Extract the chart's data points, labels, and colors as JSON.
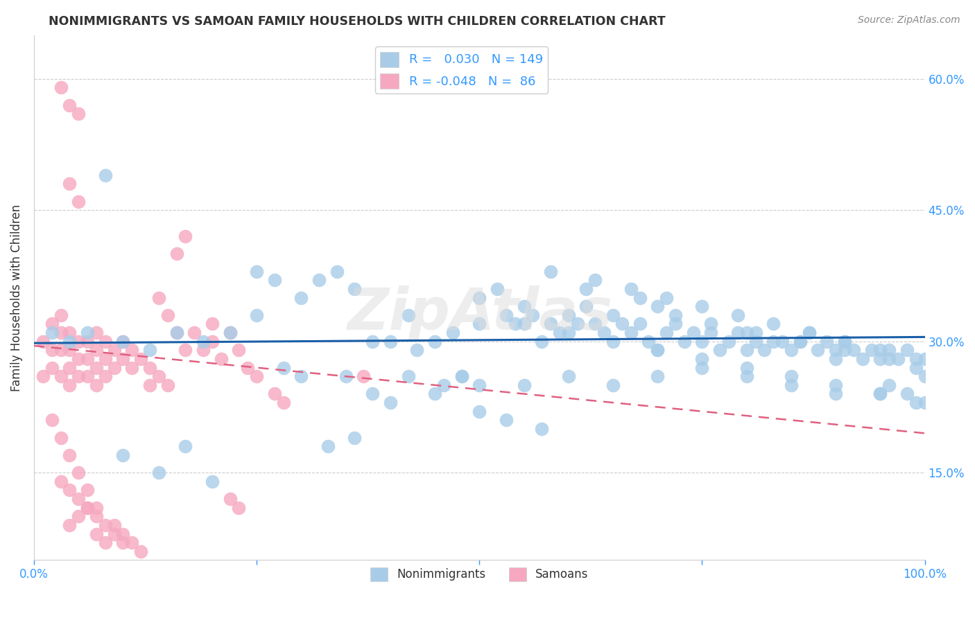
{
  "title": "NONIMMIGRANTS VS SAMOAN FAMILY HOUSEHOLDS WITH CHILDREN CORRELATION CHART",
  "source": "Source: ZipAtlas.com",
  "ylabel": "Family Households with Children",
  "xlim": [
    0.0,
    1.0
  ],
  "ylim": [
    0.05,
    0.65
  ],
  "yticks": [
    0.15,
    0.3,
    0.45,
    0.6
  ],
  "right_ytick_labels": [
    "15.0%",
    "30.0%",
    "45.0%",
    "60.0%"
  ],
  "xticks": [
    0.0,
    0.25,
    0.5,
    0.75,
    1.0
  ],
  "xtick_labels": [
    "0.0%",
    "",
    "",
    "",
    "100.0%"
  ],
  "color_blue": "#a8cce8",
  "color_pink": "#f5a8bf",
  "line_blue": "#1a5fa8",
  "line_pink": "#e06080",
  "watermark": "ZipAtlas",
  "background_color": "#ffffff",
  "grid_color": "#cccccc",
  "title_color": "#333333",
  "axis_color": "#3399ff",
  "ni_trend_start": 0.298,
  "ni_trend_end": 0.305,
  "sa_trend_start": 0.295,
  "sa_trend_end": 0.195,
  "nonimmigrants_x": [
    0.02,
    0.04,
    0.06,
    0.08,
    0.1,
    0.13,
    0.16,
    0.19,
    0.22,
    0.25,
    0.27,
    0.3,
    0.32,
    0.34,
    0.36,
    0.38,
    0.4,
    0.42,
    0.43,
    0.45,
    0.47,
    0.48,
    0.5,
    0.5,
    0.52,
    0.53,
    0.54,
    0.55,
    0.56,
    0.57,
    0.58,
    0.59,
    0.6,
    0.61,
    0.62,
    0.63,
    0.64,
    0.65,
    0.66,
    0.67,
    0.68,
    0.69,
    0.7,
    0.7,
    0.71,
    0.72,
    0.73,
    0.74,
    0.75,
    0.76,
    0.77,
    0.78,
    0.79,
    0.8,
    0.8,
    0.81,
    0.82,
    0.83,
    0.84,
    0.85,
    0.86,
    0.87,
    0.88,
    0.89,
    0.9,
    0.9,
    0.91,
    0.92,
    0.93,
    0.94,
    0.95,
    0.96,
    0.97,
    0.98,
    0.99,
    1.0,
    1.0,
    0.38,
    0.4,
    0.25,
    0.28,
    0.35,
    0.45,
    0.5,
    0.55,
    0.6,
    0.65,
    0.7,
    0.75,
    0.8,
    0.85,
    0.9,
    0.95,
    1.0,
    0.62,
    0.68,
    0.72,
    0.76,
    0.81,
    0.86,
    0.91,
    0.96,
    0.3,
    0.55,
    0.6,
    0.65,
    0.7,
    0.75,
    0.8,
    0.85,
    0.9,
    0.95,
    0.58,
    0.63,
    0.67,
    0.71,
    0.75,
    0.79,
    0.83,
    0.87,
    0.91,
    0.95,
    0.99,
    0.5,
    0.53,
    0.57,
    0.48,
    0.42,
    0.46,
    0.36,
    0.33,
    0.2,
    0.17,
    0.14,
    0.1,
    0.96,
    0.98,
    0.99
  ],
  "nonimmigrants_y": [
    0.31,
    0.3,
    0.31,
    0.49,
    0.3,
    0.29,
    0.31,
    0.3,
    0.31,
    0.38,
    0.37,
    0.35,
    0.37,
    0.38,
    0.36,
    0.3,
    0.3,
    0.33,
    0.29,
    0.3,
    0.31,
    0.26,
    0.35,
    0.32,
    0.36,
    0.33,
    0.32,
    0.34,
    0.33,
    0.3,
    0.32,
    0.31,
    0.33,
    0.32,
    0.34,
    0.32,
    0.31,
    0.33,
    0.32,
    0.31,
    0.32,
    0.3,
    0.34,
    0.29,
    0.31,
    0.32,
    0.3,
    0.31,
    0.3,
    0.31,
    0.29,
    0.3,
    0.31,
    0.31,
    0.29,
    0.3,
    0.29,
    0.3,
    0.3,
    0.29,
    0.3,
    0.31,
    0.29,
    0.3,
    0.29,
    0.28,
    0.3,
    0.29,
    0.28,
    0.29,
    0.28,
    0.29,
    0.28,
    0.29,
    0.27,
    0.28,
    0.26,
    0.24,
    0.23,
    0.33,
    0.27,
    0.26,
    0.24,
    0.25,
    0.25,
    0.26,
    0.25,
    0.26,
    0.27,
    0.26,
    0.25,
    0.24,
    0.24,
    0.23,
    0.36,
    0.35,
    0.33,
    0.32,
    0.31,
    0.3,
    0.29,
    0.28,
    0.26,
    0.32,
    0.31,
    0.3,
    0.29,
    0.28,
    0.27,
    0.26,
    0.25,
    0.24,
    0.38,
    0.37,
    0.36,
    0.35,
    0.34,
    0.33,
    0.32,
    0.31,
    0.3,
    0.29,
    0.28,
    0.22,
    0.21,
    0.2,
    0.26,
    0.26,
    0.25,
    0.19,
    0.18,
    0.14,
    0.18,
    0.15,
    0.17,
    0.25,
    0.24,
    0.23
  ],
  "samoans_x": [
    0.01,
    0.01,
    0.02,
    0.02,
    0.02,
    0.03,
    0.03,
    0.03,
    0.03,
    0.04,
    0.04,
    0.04,
    0.04,
    0.05,
    0.05,
    0.05,
    0.06,
    0.06,
    0.06,
    0.07,
    0.07,
    0.07,
    0.07,
    0.08,
    0.08,
    0.08,
    0.09,
    0.09,
    0.1,
    0.1,
    0.11,
    0.11,
    0.12,
    0.13,
    0.13,
    0.14,
    0.15,
    0.16,
    0.17,
    0.18,
    0.19,
    0.2,
    0.2,
    0.21,
    0.22,
    0.23,
    0.24,
    0.25,
    0.27,
    0.28,
    0.04,
    0.05,
    0.06,
    0.07,
    0.08,
    0.09,
    0.1,
    0.11,
    0.12,
    0.03,
    0.04,
    0.05,
    0.06,
    0.07,
    0.08,
    0.09,
    0.1,
    0.02,
    0.03,
    0.04,
    0.05,
    0.06,
    0.07,
    0.14,
    0.15,
    0.16,
    0.17,
    0.03,
    0.04,
    0.05,
    0.22,
    0.23,
    0.04,
    0.05,
    0.37
  ],
  "samoans_y": [
    0.3,
    0.26,
    0.32,
    0.29,
    0.27,
    0.33,
    0.31,
    0.29,
    0.26,
    0.31,
    0.29,
    0.27,
    0.25,
    0.3,
    0.28,
    0.26,
    0.3,
    0.28,
    0.26,
    0.31,
    0.29,
    0.27,
    0.25,
    0.3,
    0.28,
    0.26,
    0.29,
    0.27,
    0.3,
    0.28,
    0.29,
    0.27,
    0.28,
    0.27,
    0.25,
    0.26,
    0.25,
    0.4,
    0.42,
    0.31,
    0.29,
    0.32,
    0.3,
    0.28,
    0.31,
    0.29,
    0.27,
    0.26,
    0.24,
    0.23,
    0.09,
    0.1,
    0.11,
    0.08,
    0.07,
    0.09,
    0.08,
    0.07,
    0.06,
    0.14,
    0.13,
    0.12,
    0.11,
    0.1,
    0.09,
    0.08,
    0.07,
    0.21,
    0.19,
    0.17,
    0.15,
    0.13,
    0.11,
    0.35,
    0.33,
    0.31,
    0.29,
    0.59,
    0.57,
    0.56,
    0.12,
    0.11,
    0.48,
    0.46,
    0.26
  ]
}
